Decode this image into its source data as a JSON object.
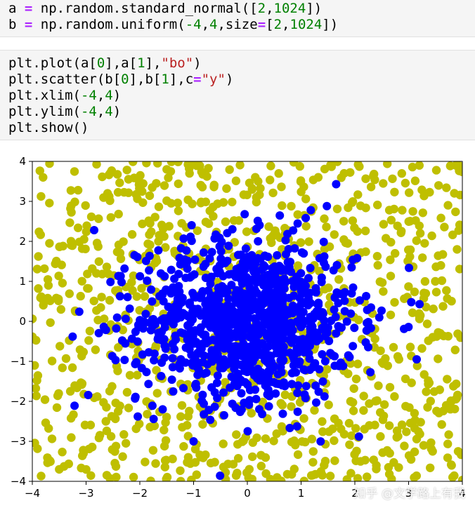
{
  "cells": [
    {
      "lines": [
        [
          [
            "a ",
            "plain"
          ],
          [
            "=",
            "op"
          ],
          [
            " np.random.standard_normal([",
            "plain"
          ],
          [
            "2",
            "num"
          ],
          [
            ",",
            "plain"
          ],
          [
            "1024",
            "num"
          ],
          [
            "])",
            "plain"
          ]
        ],
        [
          [
            "b ",
            "plain"
          ],
          [
            "=",
            "op"
          ],
          [
            " np.random.uniform(",
            "plain"
          ],
          [
            "-4",
            "num"
          ],
          [
            ",",
            "plain"
          ],
          [
            "4",
            "num"
          ],
          [
            ",size",
            "plain"
          ],
          [
            "=",
            "op"
          ],
          [
            "[",
            "plain"
          ],
          [
            "2",
            "num"
          ],
          [
            ",",
            "plain"
          ],
          [
            "1024",
            "num"
          ],
          [
            "])",
            "plain"
          ]
        ]
      ]
    },
    {
      "lines": [
        [
          [
            "plt.plot(a[",
            "plain"
          ],
          [
            "0",
            "num"
          ],
          [
            "],a[",
            "plain"
          ],
          [
            "1",
            "num"
          ],
          [
            "],",
            "plain"
          ],
          [
            "\"bo\"",
            "str"
          ],
          [
            ")",
            "plain"
          ]
        ],
        [
          [
            "plt.scatter(b[",
            "plain"
          ],
          [
            "0",
            "num"
          ],
          [
            "],b[",
            "plain"
          ],
          [
            "1",
            "num"
          ],
          [
            "],c",
            "plain"
          ],
          [
            "=",
            "op"
          ],
          [
            "\"y\"",
            "str"
          ],
          [
            ")",
            "plain"
          ]
        ],
        [
          [
            "plt.xlim(",
            "plain"
          ],
          [
            "-4",
            "num"
          ],
          [
            ",",
            "plain"
          ],
          [
            "4",
            "num"
          ],
          [
            ")",
            "plain"
          ]
        ],
        [
          [
            "plt.ylim(",
            "plain"
          ],
          [
            "-4",
            "num"
          ],
          [
            ",",
            "plain"
          ],
          [
            "4",
            "num"
          ],
          [
            ")",
            "plain"
          ]
        ],
        [
          [
            "plt.show()",
            "plain"
          ]
        ]
      ]
    }
  ],
  "chart_data": {
    "type": "scatter",
    "title": "",
    "xlabel": "",
    "ylabel": "",
    "xlim": [
      -4,
      4
    ],
    "ylim": [
      -4,
      4
    ],
    "xticks": [
      "−4",
      "−3",
      "−2",
      "−1",
      "0",
      "1",
      "2",
      "3",
      "4"
    ],
    "yticks": [
      "4",
      "3",
      "2",
      "1",
      "0",
      "−1",
      "−2",
      "−3",
      "−4"
    ],
    "grid": false,
    "legend": "none",
    "series": [
      {
        "kind": "scatter",
        "color": "#bfbf00",
        "distribution": "uniform",
        "range": [
          -4,
          4
        ],
        "count": 1024,
        "points": [
          [
            -3.8,
            3.6
          ],
          [
            -2.6,
            3.2
          ],
          [
            -1.5,
            3.8
          ],
          [
            0.2,
            3.5
          ],
          [
            1.8,
            3.7
          ],
          [
            3.2,
            3.9
          ],
          [
            -3.5,
            -3.7
          ],
          [
            -1.1,
            -3.4
          ],
          [
            2.4,
            -3.6
          ],
          [
            3.7,
            -2.1
          ],
          [
            3.6,
            1.4
          ],
          [
            -3.7,
            0.9
          ]
        ]
      },
      {
        "kind": "line-markers",
        "color": "#0000ff",
        "distribution": "standard_normal",
        "count": 1024,
        "points": [
          [
            -3.25,
            -0.38
          ],
          [
            -2.85,
            2.28
          ],
          [
            -0.05,
            2.68
          ],
          [
            1.18,
            2.78
          ],
          [
            1.48,
            2.88
          ],
          [
            3.15,
            -0.95
          ],
          [
            3.05,
            0.48
          ],
          [
            -1.0,
            -3.0
          ],
          [
            -0.25,
            0.1
          ],
          [
            0.4,
            -0.3
          ],
          [
            0.1,
            0.35
          ]
        ]
      }
    ]
  },
  "watermark": "知乎 @文学路上有我"
}
